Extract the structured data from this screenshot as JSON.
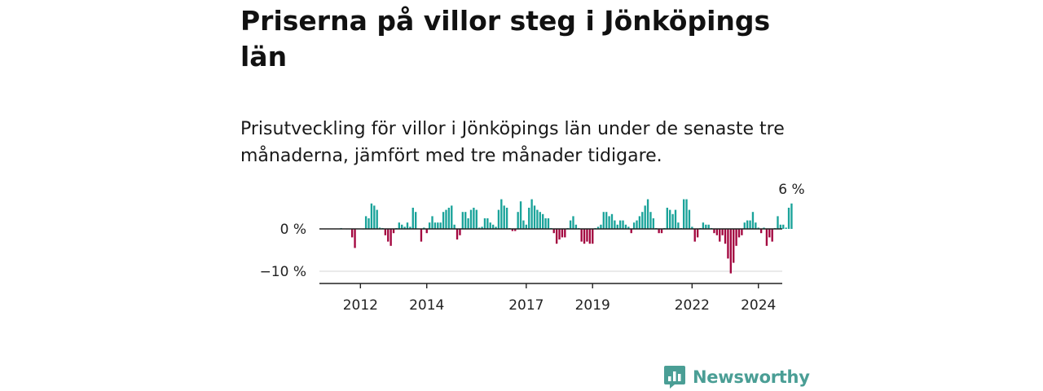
{
  "title": "Priserna på villor steg i Jönköpings län",
  "subtitle": "Prisutveckling för villor i Jönköpings län under de senaste tre månaderna, jämfört med tre månader tidigare.",
  "brand": {
    "name": "Newsworthy",
    "color": "#4a9e95",
    "icon": "newsworthy-logo-icon"
  },
  "colors": {
    "positive": "#1aa39a",
    "negative": "#a3063f",
    "axis": "#222222",
    "grid": "#dddddd"
  },
  "chart_data": {
    "type": "bar",
    "title": "",
    "xlabel": "",
    "ylabel": "",
    "unit": "%",
    "ylim": [
      -13,
      7
    ],
    "y_ticks": [
      {
        "value": 0,
        "label": "0 %"
      },
      {
        "value": -10,
        "label": "−10 %"
      }
    ],
    "x_ticks": [
      {
        "value": 2012,
        "label": "2012"
      },
      {
        "value": 2014,
        "label": "2014"
      },
      {
        "value": 2017,
        "label": "2017"
      },
      {
        "value": 2019,
        "label": "2019"
      },
      {
        "value": 2022,
        "label": "2022"
      },
      {
        "value": 2024,
        "label": "2024"
      }
    ],
    "x_start": 2011.417,
    "x_step": 0.0833333,
    "last_value_label": "6 %",
    "grid": true,
    "legend": "none",
    "series": [
      {
        "values": [
          0.2,
          0.1,
          0.0,
          0.0,
          -2.0,
          -4.5,
          0.1,
          0.1,
          0.0,
          3.0,
          2.5,
          6.0,
          5.5,
          4.5,
          0.3,
          0.2,
          -1.5,
          -3.0,
          -4.0,
          -1.0,
          0.2,
          1.5,
          1.0,
          0.5,
          1.5,
          0.5,
          5.0,
          4.0,
          0.1,
          -3.0,
          0.3,
          -1.0,
          1.5,
          3.0,
          1.5,
          1.5,
          1.5,
          4.0,
          4.5,
          5.0,
          5.5,
          1.0,
          -2.5,
          -1.5,
          4.0,
          4.0,
          2.5,
          4.5,
          5.0,
          4.5,
          0.3,
          0.5,
          2.5,
          2.5,
          1.5,
          1.0,
          0.5,
          4.5,
          7.0,
          5.5,
          5.0,
          0.2,
          -0.5,
          -0.5,
          4.0,
          6.5,
          2.0,
          1.0,
          5.0,
          7.0,
          5.5,
          4.5,
          4.0,
          3.5,
          2.5,
          2.5,
          0.2,
          -1.0,
          -3.5,
          -2.5,
          -2.0,
          -2.0,
          0.2,
          2.0,
          3.0,
          1.0,
          0.2,
          -3.0,
          -3.5,
          -3.0,
          -3.5,
          -3.5,
          0.2,
          0.5,
          1.0,
          4.0,
          4.0,
          3.0,
          3.5,
          2.0,
          1.0,
          2.0,
          2.0,
          1.0,
          0.5,
          -1.0,
          1.5,
          2.0,
          3.0,
          4.0,
          5.5,
          7.0,
          4.0,
          2.5,
          0.2,
          -1.0,
          -1.0,
          0.2,
          5.0,
          4.5,
          3.5,
          4.5,
          1.5,
          0.2,
          7.0,
          7.0,
          4.5,
          0.5,
          -3.0,
          -2.0,
          0.2,
          1.5,
          1.0,
          1.0,
          0.2,
          -1.0,
          -1.5,
          -3.0,
          -1.5,
          -3.5,
          -7.0,
          -10.5,
          -8.0,
          -4.0,
          -2.0,
          -1.5,
          1.5,
          2.0,
          2.0,
          4.0,
          1.5,
          0.3,
          -1.0,
          0.3,
          -4.0,
          -2.0,
          -3.0,
          0.2,
          3.0,
          1.0,
          1.0,
          0.3,
          5.0,
          6.0
        ]
      }
    ]
  }
}
